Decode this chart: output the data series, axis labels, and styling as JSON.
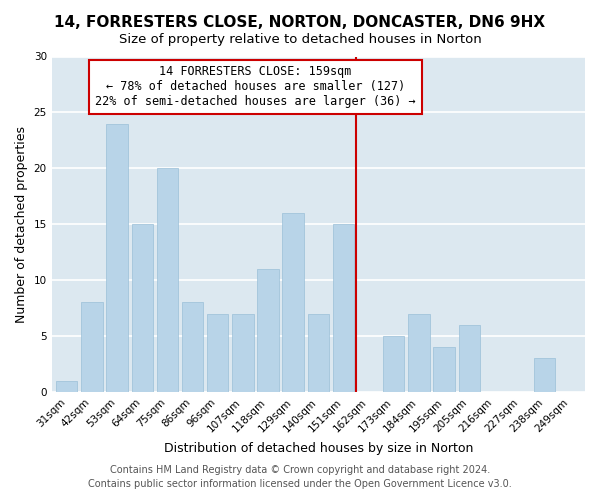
{
  "title": "14, FORRESTERS CLOSE, NORTON, DONCASTER, DN6 9HX",
  "subtitle": "Size of property relative to detached houses in Norton",
  "xlabel": "Distribution of detached houses by size in Norton",
  "ylabel": "Number of detached properties",
  "categories": [
    "31sqm",
    "42sqm",
    "53sqm",
    "64sqm",
    "75sqm",
    "86sqm",
    "96sqm",
    "107sqm",
    "118sqm",
    "129sqm",
    "140sqm",
    "151sqm",
    "162sqm",
    "173sqm",
    "184sqm",
    "195sqm",
    "205sqm",
    "216sqm",
    "227sqm",
    "238sqm",
    "249sqm"
  ],
  "values": [
    1,
    8,
    24,
    15,
    20,
    8,
    7,
    7,
    11,
    16,
    7,
    15,
    0,
    5,
    7,
    4,
    6,
    0,
    0,
    3,
    0
  ],
  "bar_color": "#b8d4e8",
  "bar_edge_color": "#9bbfd8",
  "vline_x_index": 12,
  "vline_color": "#cc0000",
  "ylim": [
    0,
    30
  ],
  "yticks": [
    0,
    5,
    10,
    15,
    20,
    25,
    30
  ],
  "annotation_title": "14 FORRESTERS CLOSE: 159sqm",
  "annotation_line1": "← 78% of detached houses are smaller (127)",
  "annotation_line2": "22% of semi-detached houses are larger (36) →",
  "annotation_box_color": "#ffffff",
  "annotation_box_edge": "#cc0000",
  "footer1": "Contains HM Land Registry data © Crown copyright and database right 2024.",
  "footer2": "Contains public sector information licensed under the Open Government Licence v3.0.",
  "bg_color": "#ffffff",
  "plot_bg_color": "#dce8f0",
  "title_fontsize": 11,
  "subtitle_fontsize": 9.5,
  "axis_label_fontsize": 9,
  "tick_fontsize": 7.5,
  "footer_fontsize": 7,
  "ann_fontsize": 8.5
}
